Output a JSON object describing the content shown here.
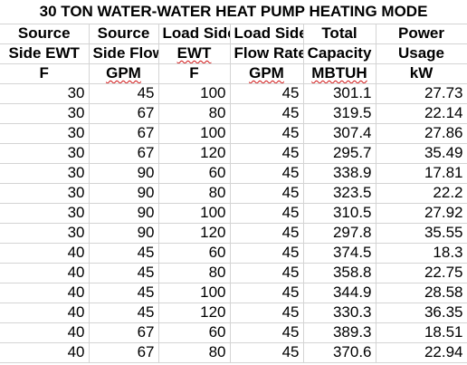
{
  "title": "30 TON WATER-WATER HEAT PUMP HEATING MODE",
  "headers": {
    "row1": [
      "Source",
      "Source",
      "Load Side",
      "Load Side",
      "Total",
      "Power"
    ],
    "row2": [
      "Side EWT",
      "Side Flow",
      "EWT",
      "Flow Rate",
      "Capacity",
      "Usage"
    ],
    "units": [
      "F",
      "GPM",
      "F",
      "GPM",
      "MBTUH",
      "kW"
    ]
  },
  "rows": [
    [
      "30",
      "45",
      "100",
      "45",
      "301.1",
      "27.73"
    ],
    [
      "30",
      "67",
      "80",
      "45",
      "319.5",
      "22.14"
    ],
    [
      "30",
      "67",
      "100",
      "45",
      "307.4",
      "27.86"
    ],
    [
      "30",
      "67",
      "120",
      "45",
      "295.7",
      "35.49"
    ],
    [
      "30",
      "90",
      "60",
      "45",
      "338.9",
      "17.81"
    ],
    [
      "30",
      "90",
      "80",
      "45",
      "323.5",
      "22.2"
    ],
    [
      "30",
      "90",
      "100",
      "45",
      "310.5",
      "27.92"
    ],
    [
      "30",
      "90",
      "120",
      "45",
      "297.8",
      "35.55"
    ],
    [
      "40",
      "45",
      "60",
      "45",
      "374.5",
      "18.3"
    ],
    [
      "40",
      "45",
      "80",
      "45",
      "358.8",
      "22.75"
    ],
    [
      "40",
      "45",
      "100",
      "45",
      "344.9",
      "28.58"
    ],
    [
      "40",
      "45",
      "120",
      "45",
      "330.3",
      "36.35"
    ],
    [
      "40",
      "67",
      "60",
      "45",
      "389.3",
      "18.51"
    ],
    [
      "40",
      "67",
      "80",
      "45",
      "370.6",
      "22.94"
    ]
  ]
}
